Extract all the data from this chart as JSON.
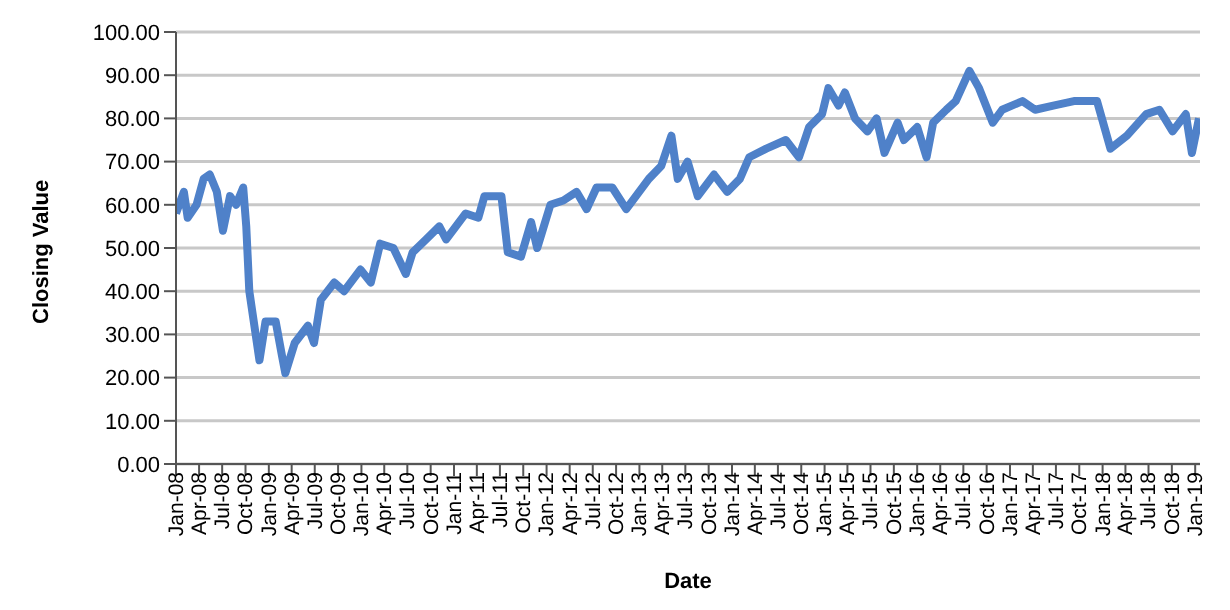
{
  "chart_data": {
    "type": "line",
    "xlabel": "Date",
    "ylabel": "Closing Value",
    "grid": "y",
    "marker": "none",
    "line_style": "solid",
    "xlim": [
      "2008-01-01",
      "2019-01-20"
    ],
    "ylim": [
      0,
      100
    ],
    "yticks": [
      {
        "value": 0,
        "label": "0.00"
      },
      {
        "value": 10,
        "label": "10.00"
      },
      {
        "value": 20,
        "label": "20.00"
      },
      {
        "value": 30,
        "label": "30.00"
      },
      {
        "value": 40,
        "label": "40.00"
      },
      {
        "value": 50,
        "label": "50.00"
      },
      {
        "value": 60,
        "label": "60.00"
      },
      {
        "value": 70,
        "label": "70.00"
      },
      {
        "value": 80,
        "label": "80.00"
      },
      {
        "value": 90,
        "label": "90.00"
      },
      {
        "value": 100,
        "label": "100.00"
      }
    ],
    "xticks": [
      {
        "value": "2008-01",
        "label": "Jan-08"
      },
      {
        "value": "2008-04",
        "label": "Apr-08"
      },
      {
        "value": "2008-07",
        "label": "Jul-08"
      },
      {
        "value": "2008-10",
        "label": "Oct-08"
      },
      {
        "value": "2009-01",
        "label": "Jan-09"
      },
      {
        "value": "2009-04",
        "label": "Apr-09"
      },
      {
        "value": "2009-07",
        "label": "Jul-09"
      },
      {
        "value": "2009-10",
        "label": "Oct-09"
      },
      {
        "value": "2010-01",
        "label": "Jan-10"
      },
      {
        "value": "2010-04",
        "label": "Apr-10"
      },
      {
        "value": "2010-07",
        "label": "Jul-10"
      },
      {
        "value": "2010-10",
        "label": "Oct-10"
      },
      {
        "value": "2011-01",
        "label": "Jan-11"
      },
      {
        "value": "2011-04",
        "label": "Apr-11"
      },
      {
        "value": "2011-07",
        "label": "Jul-11"
      },
      {
        "value": "2011-10",
        "label": "Oct-11"
      },
      {
        "value": "2012-01",
        "label": "Jan-12"
      },
      {
        "value": "2012-04",
        "label": "Apr-12"
      },
      {
        "value": "2012-07",
        "label": "Jul-12"
      },
      {
        "value": "2012-10",
        "label": "Oct-12"
      },
      {
        "value": "2013-01",
        "label": "Jan-13"
      },
      {
        "value": "2013-04",
        "label": "Apr-13"
      },
      {
        "value": "2013-07",
        "label": "Jul-13"
      },
      {
        "value": "2013-10",
        "label": "Oct-13"
      },
      {
        "value": "2014-01",
        "label": "Jan-14"
      },
      {
        "value": "2014-04",
        "label": "Apr-14"
      },
      {
        "value": "2014-07",
        "label": "Jul-14"
      },
      {
        "value": "2014-10",
        "label": "Oct-14"
      },
      {
        "value": "2015-01",
        "label": "Jan-15"
      },
      {
        "value": "2015-04",
        "label": "Apr-15"
      },
      {
        "value": "2015-07",
        "label": "Jul-15"
      },
      {
        "value": "2015-10",
        "label": "Oct-15"
      },
      {
        "value": "2016-01",
        "label": "Jan-16"
      },
      {
        "value": "2016-04",
        "label": "Apr-16"
      },
      {
        "value": "2016-07",
        "label": "Jul-16"
      },
      {
        "value": "2016-10",
        "label": "Oct-16"
      },
      {
        "value": "2017-01",
        "label": "Jan-17"
      },
      {
        "value": "2017-04",
        "label": "Apr-17"
      },
      {
        "value": "2017-07",
        "label": "Jul-17"
      },
      {
        "value": "2017-10",
        "label": "Oct-17"
      },
      {
        "value": "2018-01",
        "label": "Jan-18"
      },
      {
        "value": "2018-04",
        "label": "Apr-18"
      },
      {
        "value": "2018-07",
        "label": "Jul-18"
      },
      {
        "value": "2018-10",
        "label": "Oct-18"
      },
      {
        "value": "2019-01",
        "label": "Jan-19"
      }
    ],
    "x": [
      "2008-01-01",
      "2008-02-01",
      "2008-02-16",
      "2008-03-22",
      "2008-04-19",
      "2008-05-13",
      "2008-06-10",
      "2008-07-04",
      "2008-08-01",
      "2008-08-25",
      "2008-09-22",
      "2008-10-04",
      "2008-10-16",
      "2008-11-10",
      "2008-11-25",
      "2008-12-19",
      "2009-01-28",
      "2009-02-22",
      "2009-03-07",
      "2009-04-13",
      "2009-06-04",
      "2009-06-28",
      "2009-07-25",
      "2009-09-16",
      "2009-10-25",
      "2009-12-28",
      "2010-02-07",
      "2010-03-16",
      "2010-05-07",
      "2010-06-25",
      "2010-07-22",
      "2010-09-13",
      "2010-11-04",
      "2010-12-01",
      "2011-02-16",
      "2011-04-07",
      "2011-05-01",
      "2011-07-07",
      "2011-08-01",
      "2011-09-22",
      "2011-11-01",
      "2011-11-25",
      "2012-01-16",
      "2012-03-07",
      "2012-04-28",
      "2012-06-07",
      "2012-07-16",
      "2012-09-16",
      "2012-11-10",
      "2013-02-07",
      "2013-03-28",
      "2013-05-07",
      "2013-06-01",
      "2013-07-10",
      "2013-08-19",
      "2013-10-22",
      "2013-12-13",
      "2014-02-01",
      "2014-03-10",
      "2014-05-16",
      "2014-08-01",
      "2014-09-22",
      "2014-11-01",
      "2014-12-22",
      "2015-01-16",
      "2015-02-25",
      "2015-03-22",
      "2015-05-01",
      "2015-06-19",
      "2015-07-25",
      "2015-08-25",
      "2015-10-16",
      "2015-11-10",
      "2016-01-01",
      "2016-02-07",
      "2016-03-04",
      "2016-04-25",
      "2016-06-01",
      "2016-07-25",
      "2016-09-01",
      "2016-10-25",
      "2016-12-01",
      "2017-02-19",
      "2017-04-10",
      "2017-06-25",
      "2017-09-10",
      "2017-12-10",
      "2018-02-01",
      "2018-04-07",
      "2018-06-22",
      "2018-08-13",
      "2018-10-04",
      "2018-11-25",
      "2018-12-19",
      "2019-01-16"
    ],
    "series": [
      {
        "color": "#4f81c9",
        "values": [
          58,
          63,
          57,
          60,
          66,
          67,
          63,
          54,
          62,
          60,
          64,
          55,
          40,
          30,
          24,
          33,
          33,
          25,
          21,
          28,
          32,
          28,
          38,
          42,
          40,
          45,
          42,
          51,
          50,
          44,
          49,
          52,
          55,
          52,
          58,
          57,
          62,
          62,
          49,
          48,
          56,
          50,
          60,
          61,
          63,
          59,
          64,
          64,
          59,
          66,
          69,
          76,
          66,
          70,
          62,
          67,
          63,
          66,
          71,
          73,
          75,
          71,
          78,
          81,
          87,
          83,
          86,
          80,
          77,
          80,
          72,
          79,
          75,
          78,
          71,
          79,
          82,
          84,
          91,
          87,
          79,
          82,
          84,
          82,
          83,
          84,
          84,
          73,
          76,
          81,
          82,
          77,
          81,
          72,
          80
        ]
      }
    ]
  }
}
